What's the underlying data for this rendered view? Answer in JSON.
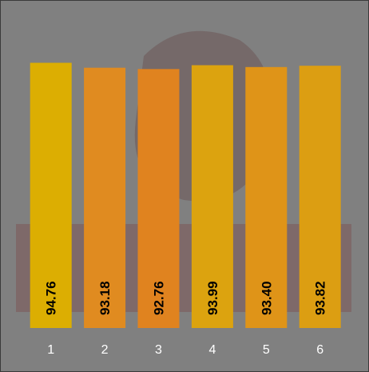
{
  "chart_data": {
    "type": "bar",
    "categories": [
      "1",
      "2",
      "3",
      "4",
      "5",
      "6"
    ],
    "values": [
      94.76,
      93.18,
      92.76,
      93.99,
      93.4,
      93.82
    ],
    "value_labels": [
      "94.76",
      "93.18",
      "92.76",
      "93.99",
      "93.40",
      "93.82"
    ],
    "colors": [
      "#dcae02",
      "#e08b20",
      "#e0831f",
      "#dca30f",
      "#df9418",
      "#dc9e12"
    ],
    "ylim": [
      10,
      100
    ]
  }
}
